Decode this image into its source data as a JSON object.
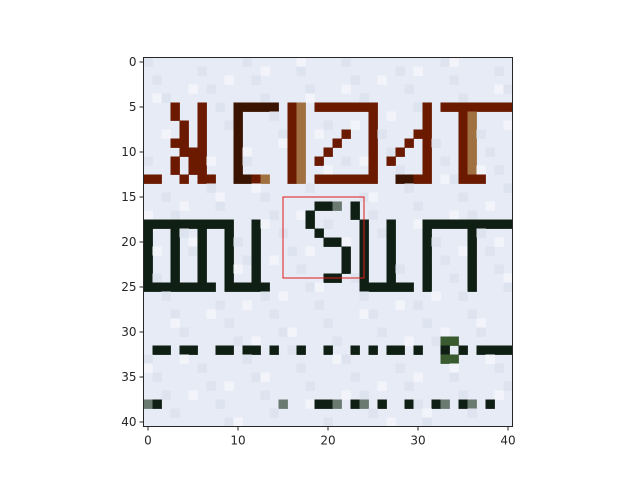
{
  "figure": {
    "background": "#ffffff",
    "axis_color": "#262626",
    "highlight_color": "#e31a1c",
    "x_ticks": [
      "0",
      "10",
      "20",
      "30",
      "40"
    ],
    "y_ticks": [
      "0",
      "5",
      "10",
      "15",
      "20",
      "25",
      "30",
      "35",
      "40"
    ]
  },
  "image": {
    "description_visible_text": [
      "ALIZAT",
      "ION SOFT"
    ],
    "grid_size": [
      41,
      41
    ],
    "background_color": "#e6ebf5"
  },
  "highlight_box": {
    "x0": 15,
    "y0": 15,
    "x1": 24,
    "y1": 24
  }
}
